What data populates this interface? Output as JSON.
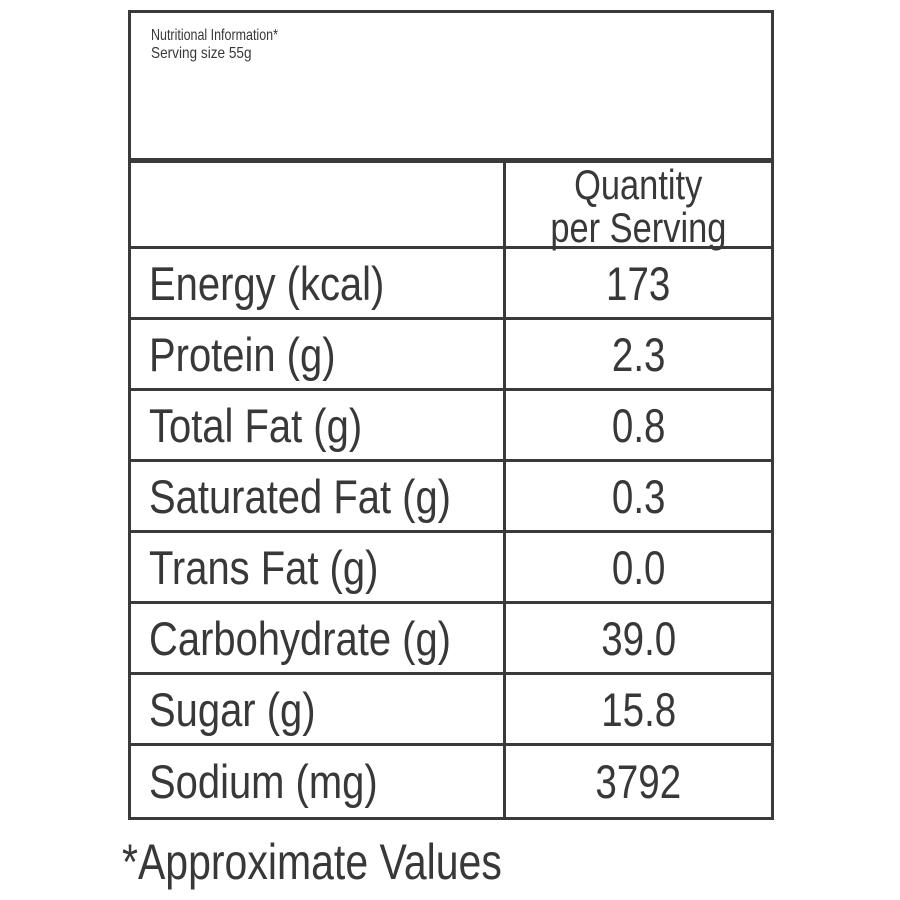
{
  "header": {
    "title": "Nutritional Information*",
    "serving_size": "Serving size 55g"
  },
  "table": {
    "value_column_header_line1": "Quantity",
    "value_column_header_line2": "per Serving",
    "rows": [
      {
        "label": "Energy (kcal)",
        "value": "173"
      },
      {
        "label": "Protein (g)",
        "value": "2.3"
      },
      {
        "label": "Total Fat (g)",
        "value": "0.8"
      },
      {
        "label": "Saturated Fat (g)",
        "value": "0.3"
      },
      {
        "label": "Trans Fat (g)",
        "value": "0.0"
      },
      {
        "label": "Carbohydrate (g)",
        "value": "39.0"
      },
      {
        "label": "Sugar (g)",
        "value": "15.8"
      },
      {
        "label": "Sodium (mg)",
        "value": "3792"
      }
    ]
  },
  "footnote": "*Approximate Values",
  "colors": {
    "text": "#383838",
    "border": "#3a3a3a",
    "background": "#ffffff"
  }
}
